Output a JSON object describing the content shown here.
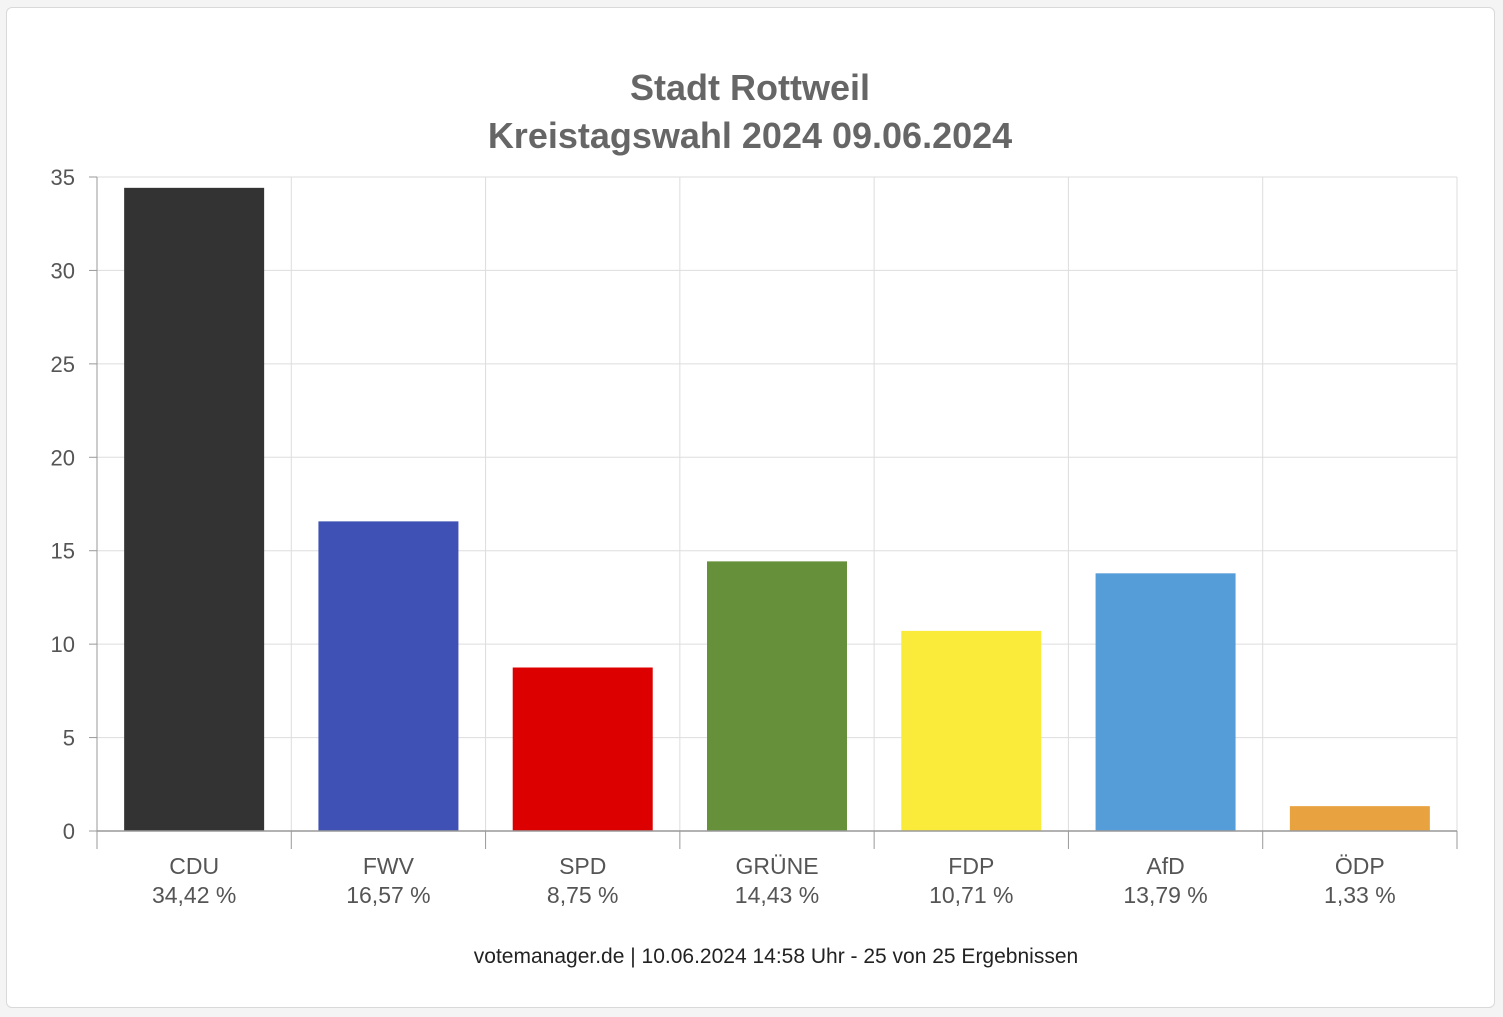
{
  "chart_data": {
    "type": "bar",
    "title": "Stadt Rottweil",
    "subtitle": "Kreistagswahl 2024 09.06.2024",
    "categories": [
      "CDU",
      "FWV",
      "SPD",
      "GRÜNE",
      "FDP",
      "AfD",
      "ÖDP"
    ],
    "values": [
      34.42,
      16.57,
      8.75,
      14.43,
      10.71,
      13.79,
      1.33
    ],
    "value_labels": [
      "34,42 %",
      "16,57 %",
      "8,75 %",
      "14,43 %",
      "10,71 %",
      "13,79 %",
      "1,33 %"
    ],
    "colors": [
      "#333333",
      "#3f51b5",
      "#dd0000",
      "#66913a",
      "#faeb3b",
      "#559dd8",
      "#e8a23f"
    ],
    "yticks": [
      "0",
      "5",
      "10",
      "15",
      "20",
      "25",
      "30",
      "35"
    ],
    "ylim": [
      0,
      35
    ],
    "xlabel": "",
    "ylabel": "",
    "grid": true,
    "legend": "none"
  },
  "footer": "votemanager.de | 10.06.2024 14:58 Uhr - 25 von 25 Ergebnissen"
}
